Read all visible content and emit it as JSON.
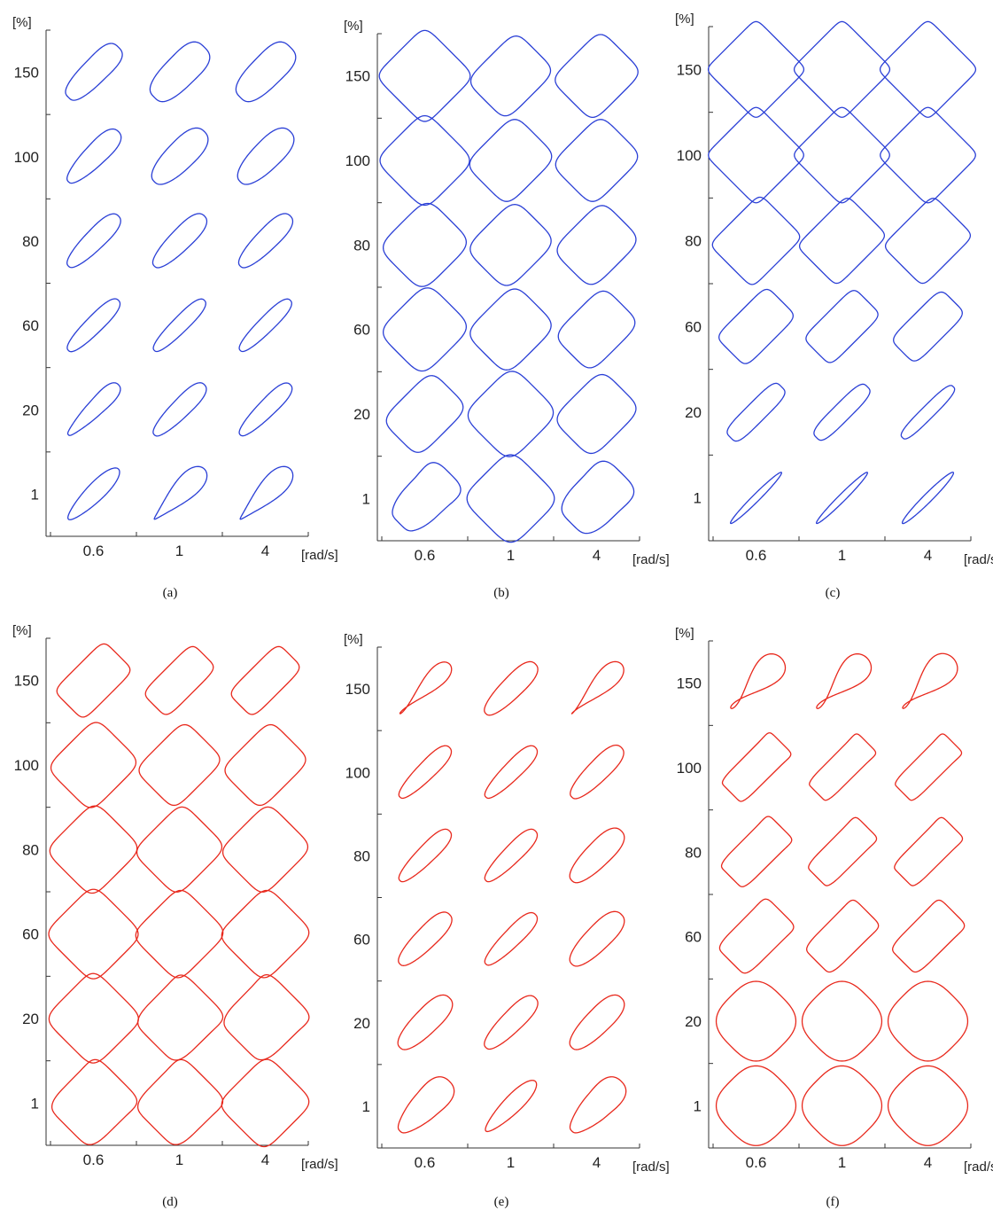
{
  "figure": {
    "y_unit": "[%]",
    "x_unit": "[rad/s]",
    "y_ticks": [
      "150",
      "100",
      "80",
      "60",
      "20",
      "1"
    ],
    "x_ticks": [
      "0.6",
      "1",
      "4"
    ],
    "series_colors": {
      "blue": "#2a3fd6",
      "red": "#e8281c"
    }
  },
  "chart_data": [
    {
      "type": "small-multiples",
      "caption": "(a)",
      "color": "#2a3fd6",
      "rows": [
        "150",
        "100",
        "80",
        "60",
        "20",
        "1"
      ],
      "cols": [
        "0.6",
        "1",
        "4"
      ],
      "cells": [
        [
          {
            "ar": 0.35,
            "sq": 0.1,
            "sk": 0.1
          },
          {
            "ar": 0.45,
            "sq": 0.1,
            "sk": 0.1
          },
          {
            "ar": 0.45,
            "sq": 0.1,
            "sk": 0.1
          }
        ],
        [
          {
            "ar": 0.3,
            "sq": 0.05,
            "sk": 0.15
          },
          {
            "ar": 0.4,
            "sq": 0.05,
            "sk": 0.1
          },
          {
            "ar": 0.4,
            "sq": 0.05,
            "sk": 0.1
          }
        ],
        [
          {
            "ar": 0.28,
            "sq": 0.05,
            "sk": 0.1
          },
          {
            "ar": 0.3,
            "sq": 0.05,
            "sk": 0.1
          },
          {
            "ar": 0.3,
            "sq": 0.05,
            "sk": 0.1
          }
        ],
        [
          {
            "ar": 0.24,
            "sq": 0.05,
            "sk": 0.05
          },
          {
            "ar": 0.22,
            "sq": 0.05,
            "sk": 0.05
          },
          {
            "ar": 0.22,
            "sq": 0.05,
            "sk": 0.05
          }
        ],
        [
          {
            "ar": 0.22,
            "sq": 0.05,
            "sk": 0.2
          },
          {
            "ar": 0.26,
            "sq": 0.05,
            "sk": 0.1
          },
          {
            "ar": 0.24,
            "sq": 0.05,
            "sk": 0.1
          }
        ],
        [
          {
            "ar": 0.25,
            "sq": 0.0,
            "sk": 0.1
          },
          {
            "ar": 0.28,
            "sq": 0.0,
            "sk": 0.4
          },
          {
            "ar": 0.28,
            "sq": 0.0,
            "sk": 0.4
          }
        ]
      ]
    },
    {
      "type": "small-multiples",
      "caption": "(b)",
      "color": "#2a3fd6",
      "rows": [
        "150",
        "100",
        "80",
        "60",
        "20",
        "1"
      ],
      "cols": [
        "0.6",
        "1",
        "4"
      ],
      "cells": [
        [
          {
            "ar": 1.0,
            "sq": 0.5,
            "sk": 0.0
          },
          {
            "ar": 0.8,
            "sq": 0.35,
            "sk": 0.0
          },
          {
            "ar": 0.85,
            "sq": 0.4,
            "sk": 0.0
          }
        ],
        [
          {
            "ar": 1.0,
            "sq": 0.4,
            "sk": 0.0
          },
          {
            "ar": 0.85,
            "sq": 0.35,
            "sk": 0.0
          },
          {
            "ar": 0.85,
            "sq": 0.35,
            "sk": 0.0
          }
        ],
        [
          {
            "ar": 0.9,
            "sq": 0.3,
            "sk": 0.0
          },
          {
            "ar": 0.85,
            "sq": 0.3,
            "sk": 0.0
          },
          {
            "ar": 0.8,
            "sq": 0.3,
            "sk": 0.0
          }
        ],
        [
          {
            "ar": 0.9,
            "sq": 0.3,
            "sk": 0.0
          },
          {
            "ar": 0.85,
            "sq": 0.3,
            "sk": 0.0
          },
          {
            "ar": 0.75,
            "sq": 0.3,
            "sk": 0.0
          }
        ],
        [
          {
            "ar": 0.75,
            "sq": 0.3,
            "sk": 0.0
          },
          {
            "ar": 0.95,
            "sq": 0.3,
            "sk": 0.0
          },
          {
            "ar": 0.8,
            "sq": 0.3,
            "sk": 0.0
          }
        ],
        [
          {
            "ar": 0.6,
            "sq": 0.2,
            "sk": 0.3
          },
          {
            "ar": 1.0,
            "sq": 0.3,
            "sk": 0.0
          },
          {
            "ar": 0.7,
            "sq": 0.2,
            "sk": 0.2
          }
        ]
      ]
    },
    {
      "type": "small-multiples",
      "caption": "(c)",
      "color": "#2a3fd6",
      "rows": [
        "150",
        "100",
        "80",
        "60",
        "20",
        "1"
      ],
      "cols": [
        "0.6",
        "1",
        "4"
      ],
      "cells": [
        [
          {
            "ar": 1.0,
            "sq": 0.9,
            "sk": 0.0
          },
          {
            "ar": 1.0,
            "sq": 0.9,
            "sk": 0.0
          },
          {
            "ar": 1.0,
            "sq": 0.9,
            "sk": 0.0
          }
        ],
        [
          {
            "ar": 1.0,
            "sq": 0.85,
            "sk": 0.0
          },
          {
            "ar": 1.0,
            "sq": 0.85,
            "sk": 0.0
          },
          {
            "ar": 1.0,
            "sq": 0.85,
            "sk": 0.0
          }
        ],
        [
          {
            "ar": 0.85,
            "sq": 0.7,
            "sk": 0.0
          },
          {
            "ar": 0.8,
            "sq": 0.7,
            "sk": 0.0
          },
          {
            "ar": 0.8,
            "sq": 0.7,
            "sk": 0.0
          }
        ],
        [
          {
            "ar": 0.6,
            "sq": 0.5,
            "sk": 0.0
          },
          {
            "ar": 0.55,
            "sq": 0.5,
            "sk": 0.0
          },
          {
            "ar": 0.5,
            "sq": 0.4,
            "sk": 0.0
          }
        ],
        [
          {
            "ar": 0.28,
            "sq": 0.2,
            "sk": 0.0
          },
          {
            "ar": 0.25,
            "sq": 0.15,
            "sk": 0.0
          },
          {
            "ar": 0.18,
            "sq": 0.1,
            "sk": 0.0
          }
        ],
        [
          {
            "ar": 0.1,
            "sq": 0.0,
            "sk": 0.0
          },
          {
            "ar": 0.1,
            "sq": 0.0,
            "sk": 0.0
          },
          {
            "ar": 0.12,
            "sq": 0.0,
            "sk": 0.0
          }
        ]
      ]
    },
    {
      "type": "small-multiples",
      "caption": "(d)",
      "color": "#e8281c",
      "rows": [
        "150",
        "100",
        "80",
        "60",
        "20",
        "1"
      ],
      "cols": [
        "0.6",
        "1",
        "4"
      ],
      "cells": [
        [
          {
            "ar": 0.6,
            "sq": 0.5,
            "sk": 0.0
          },
          {
            "ar": 0.5,
            "sq": 0.4,
            "sk": 0.0
          },
          {
            "ar": 0.5,
            "sq": 0.4,
            "sk": 0.0
          }
        ],
        [
          {
            "ar": 0.9,
            "sq": 0.4,
            "sk": 0.0
          },
          {
            "ar": 0.8,
            "sq": 0.4,
            "sk": 0.0
          },
          {
            "ar": 0.8,
            "sq": 0.4,
            "sk": 0.0
          }
        ],
        [
          {
            "ar": 0.95,
            "sq": 0.4,
            "sk": 0.0
          },
          {
            "ar": 0.9,
            "sq": 0.4,
            "sk": 0.0
          },
          {
            "ar": 0.9,
            "sq": 0.4,
            "sk": 0.0
          }
        ],
        [
          {
            "ar": 1.0,
            "sq": 0.4,
            "sk": 0.0
          },
          {
            "ar": 0.95,
            "sq": 0.4,
            "sk": 0.0
          },
          {
            "ar": 0.95,
            "sq": 0.4,
            "sk": 0.0
          }
        ],
        [
          {
            "ar": 1.0,
            "sq": 0.4,
            "sk": 0.05
          },
          {
            "ar": 0.9,
            "sq": 0.4,
            "sk": 0.15
          },
          {
            "ar": 0.9,
            "sq": 0.4,
            "sk": 0.2
          }
        ],
        [
          {
            "ar": 0.9,
            "sq": 0.4,
            "sk": 0.15
          },
          {
            "ar": 0.9,
            "sq": 0.4,
            "sk": 0.15
          },
          {
            "ar": 0.95,
            "sq": 0.4,
            "sk": 0.0
          }
        ]
      ]
    },
    {
      "type": "small-multiples",
      "caption": "(e)",
      "color": "#e8281c",
      "rows": [
        "150",
        "100",
        "80",
        "60",
        "20",
        "1"
      ],
      "cols": [
        "0.6",
        "1",
        "4"
      ],
      "cells": [
        [
          {
            "ar": 0.18,
            "sq": 0.0,
            "sk": 0.5
          },
          {
            "ar": 0.3,
            "sq": 0.05,
            "sk": 0.1
          },
          {
            "ar": 0.22,
            "sq": 0.0,
            "sk": 0.5
          }
        ],
        [
          {
            "ar": 0.25,
            "sq": 0.05,
            "sk": 0.1
          },
          {
            "ar": 0.25,
            "sq": 0.05,
            "sk": 0.1
          },
          {
            "ar": 0.3,
            "sq": 0.05,
            "sk": 0.1
          }
        ],
        [
          {
            "ar": 0.25,
            "sq": 0.05,
            "sk": 0.1
          },
          {
            "ar": 0.25,
            "sq": 0.05,
            "sk": 0.1
          },
          {
            "ar": 0.35,
            "sq": 0.05,
            "sk": 0.1
          }
        ],
        [
          {
            "ar": 0.3,
            "sq": 0.05,
            "sk": 0.1
          },
          {
            "ar": 0.25,
            "sq": 0.05,
            "sk": 0.1
          },
          {
            "ar": 0.35,
            "sq": 0.05,
            "sk": 0.1
          }
        ],
        [
          {
            "ar": 0.35,
            "sq": 0.05,
            "sk": 0.1
          },
          {
            "ar": 0.3,
            "sq": 0.05,
            "sk": 0.1
          },
          {
            "ar": 0.35,
            "sq": 0.05,
            "sk": 0.1
          }
        ],
        [
          {
            "ar": 0.4,
            "sq": 0.05,
            "sk": 0.3
          },
          {
            "ar": 0.25,
            "sq": 0.0,
            "sk": 0.1
          },
          {
            "ar": 0.4,
            "sq": 0.05,
            "sk": 0.3
          }
        ]
      ]
    },
    {
      "type": "small-multiples",
      "caption": "(f)",
      "color": "#e8281c",
      "rows": [
        "150",
        "100",
        "80",
        "60",
        "20",
        "1"
      ],
      "cols": [
        "0.6",
        "1",
        "4"
      ],
      "cells": [
        [
          {
            "ar": 0.25,
            "sq": 0.0,
            "sk": 0.8
          },
          {
            "ar": 0.25,
            "sq": 0.0,
            "sk": 0.8
          },
          {
            "ar": 0.28,
            "sq": 0.0,
            "sk": 0.8
          }
        ],
        [
          {
            "ar": 0.45,
            "sq": 0.8,
            "sk": 0.1
          },
          {
            "ar": 0.4,
            "sq": 0.8,
            "sk": 0.1
          },
          {
            "ar": 0.4,
            "sq": 0.8,
            "sk": 0.1
          }
        ],
        [
          {
            "ar": 0.5,
            "sq": 0.7,
            "sk": 0.1
          },
          {
            "ar": 0.45,
            "sq": 0.7,
            "sk": 0.1
          },
          {
            "ar": 0.45,
            "sq": 0.7,
            "sk": 0.1
          }
        ],
        [
          {
            "ar": 0.6,
            "sq": 0.6,
            "sk": 0.1
          },
          {
            "ar": 0.55,
            "sq": 0.6,
            "sk": 0.1
          },
          {
            "ar": 0.55,
            "sq": 0.6,
            "sk": 0.1
          }
        ],
        [
          {
            "ar": 1.0,
            "sq": 0.1,
            "sk": 0.0
          },
          {
            "ar": 1.0,
            "sq": 0.1,
            "sk": 0.0
          },
          {
            "ar": 1.0,
            "sq": 0.1,
            "sk": 0.0
          }
        ],
        [
          {
            "ar": 1.0,
            "sq": 0.1,
            "sk": 0.0
          },
          {
            "ar": 1.0,
            "sq": 0.1,
            "sk": 0.0
          },
          {
            "ar": 1.0,
            "sq": 0.1,
            "sk": 0.0
          }
        ]
      ]
    }
  ]
}
